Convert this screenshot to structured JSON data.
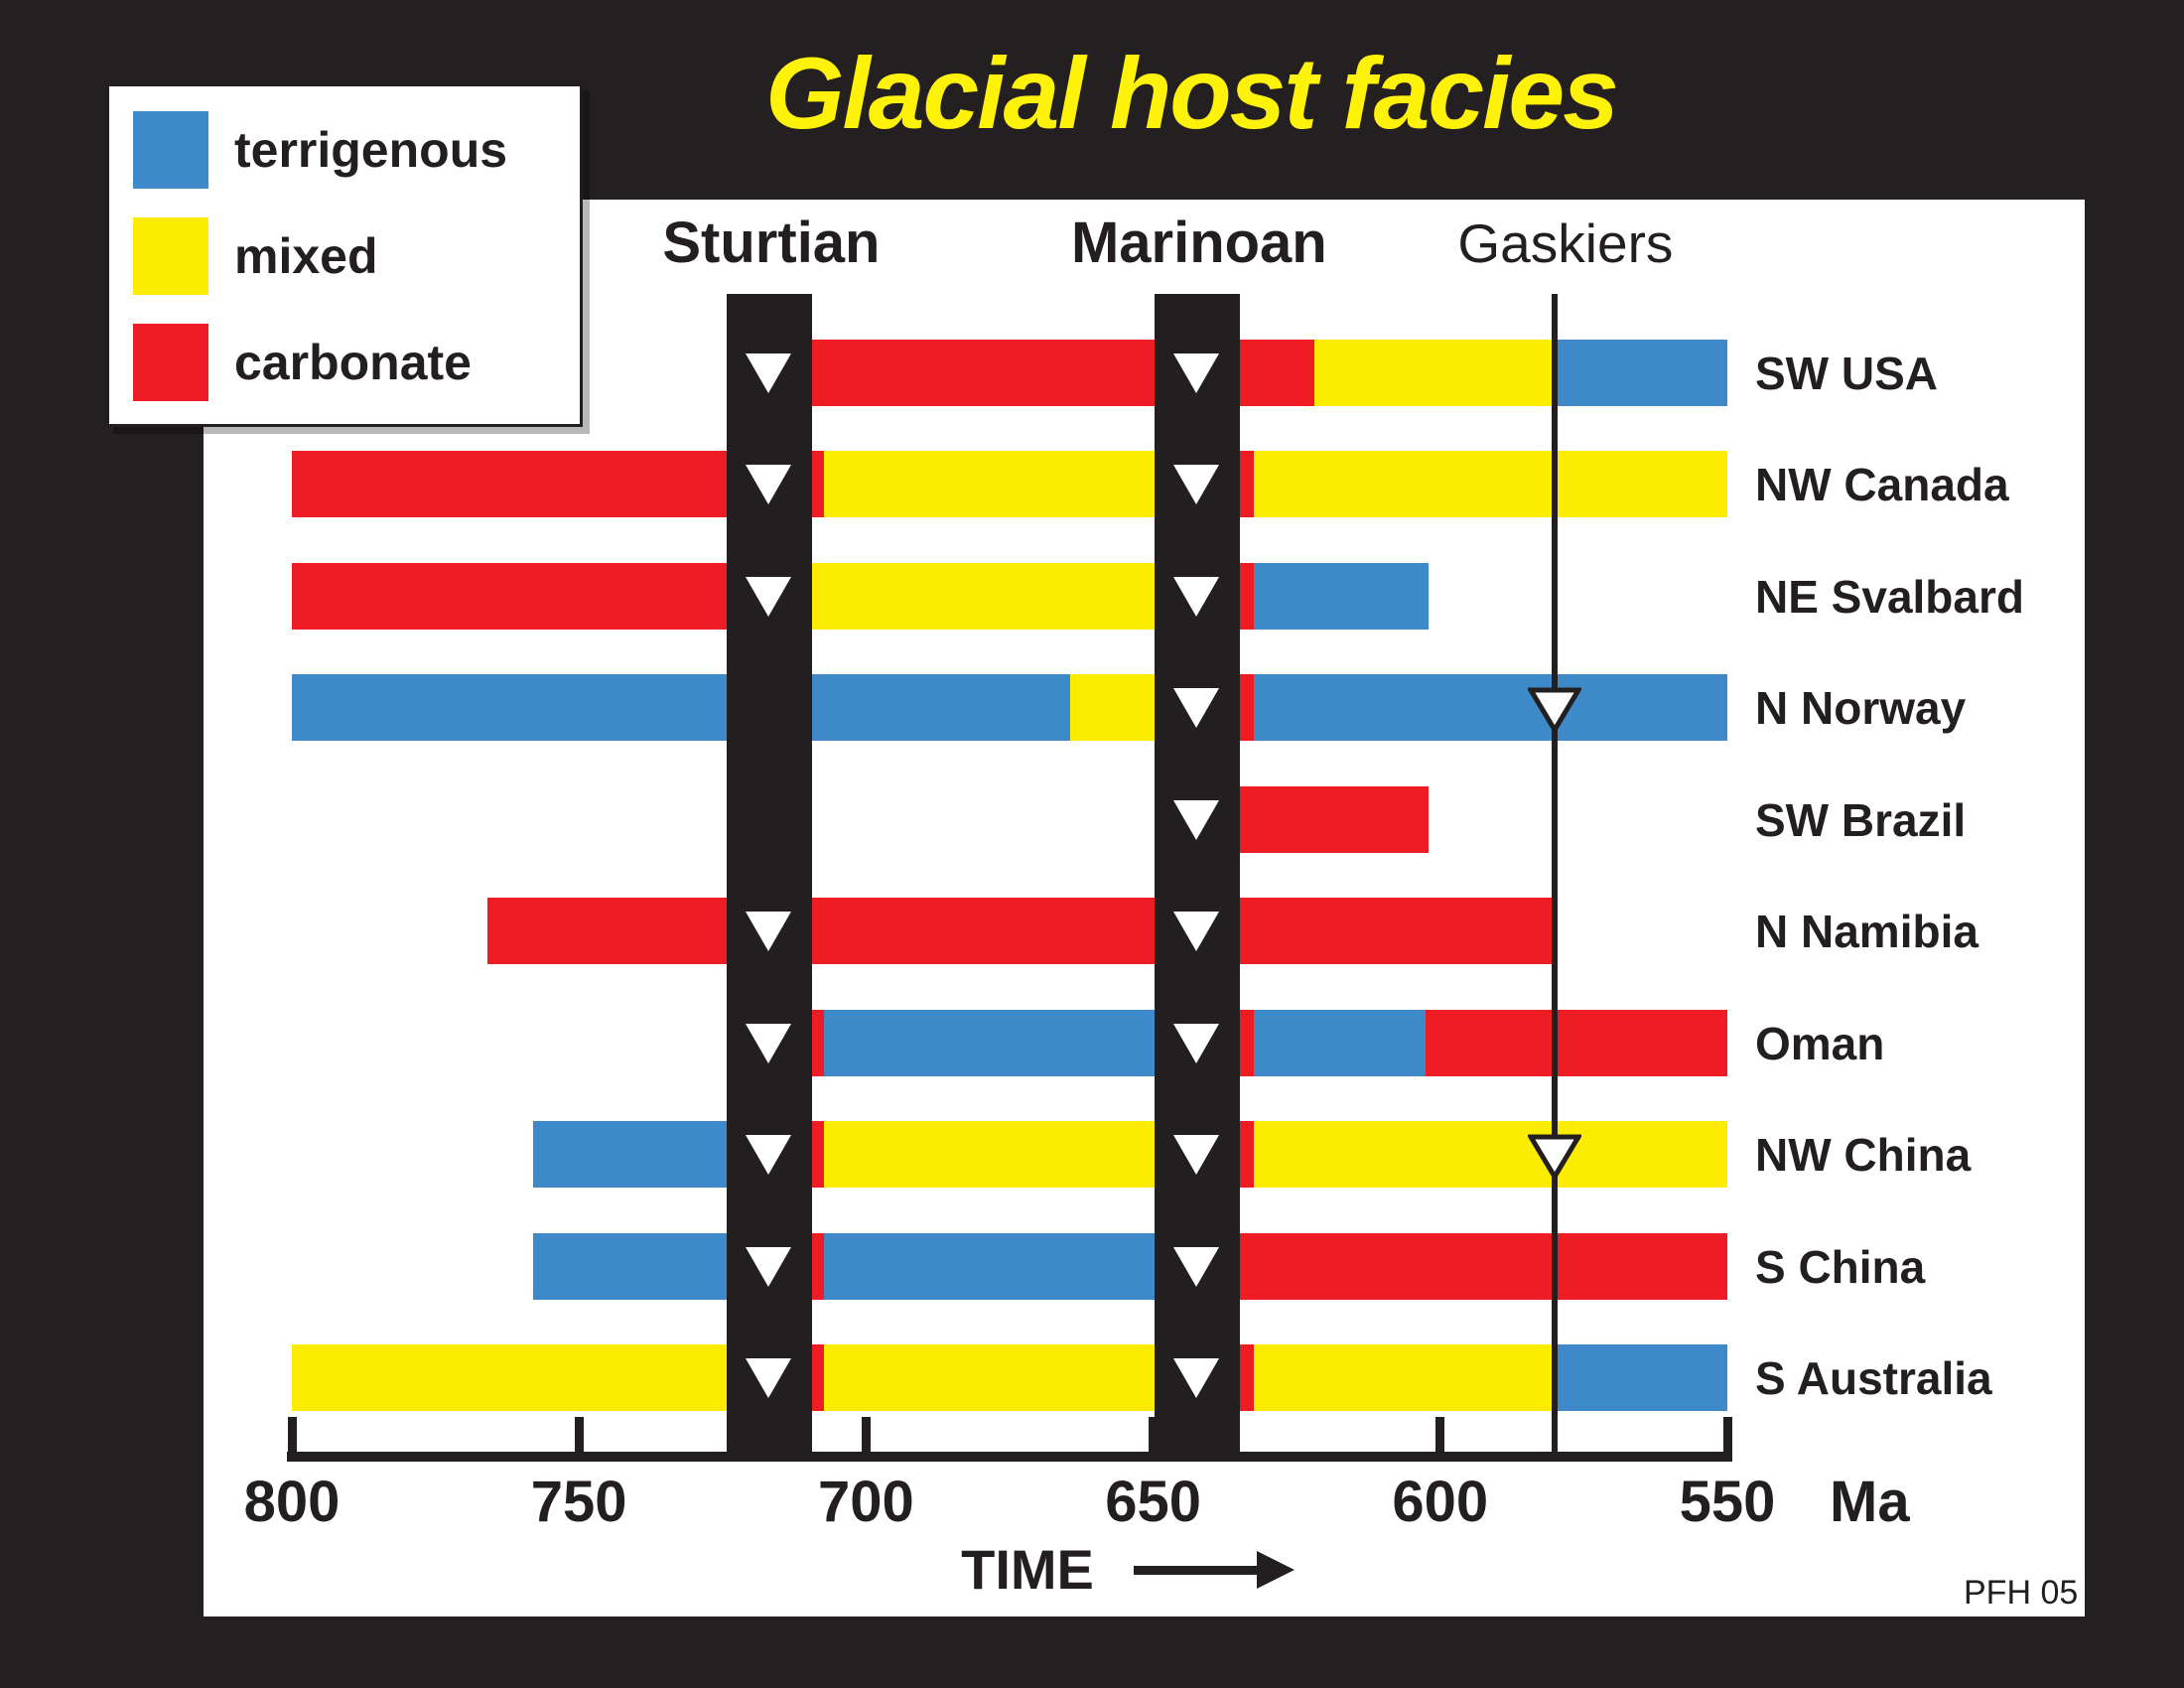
{
  "title": {
    "text": "Glacial host facies",
    "color": "#FFF20A"
  },
  "credit": "PFH 05",
  "legend": {
    "items": [
      {
        "label": "terrigenous",
        "facies": "terrigenous",
        "color": "#3E89C8"
      },
      {
        "label": "mixed",
        "facies": "mixed",
        "color": "#FCEC00"
      },
      {
        "label": "carbonate",
        "facies": "carbonate",
        "color": "#EE1C25"
      }
    ]
  },
  "chart_data": {
    "type": "bar",
    "variant": "horizontal-timeline",
    "title": "Glacial host facies",
    "time_axis": {
      "label": "TIME",
      "unit": "Ma",
      "ticks": [
        800,
        750,
        700,
        650,
        600,
        550
      ],
      "min": 800,
      "max": 550,
      "direction": "older-left"
    },
    "facies_colors": {
      "terrigenous": "#3E89C8",
      "mixed": "#FCEC00",
      "carbonate": "#EE1C25"
    },
    "glaciations": [
      {
        "id": "sturtian",
        "name": "Sturtian",
        "style": "band",
        "from_ma": 724.3,
        "to_ma": 709.4,
        "label_weight": "bold"
      },
      {
        "id": "marinoan",
        "name": "Marinoan",
        "style": "band",
        "from_ma": 649.8,
        "to_ma": 634.9,
        "label_weight": "bold"
      },
      {
        "id": "gaskiers",
        "name": "Gaskiers",
        "style": "line",
        "at_ma": 580.1,
        "label_weight": "normal"
      }
    ],
    "rows": [
      {
        "label": "SW USA",
        "markers": [
          "sturtian",
          "marinoan"
        ],
        "segments": [
          {
            "facies": "carbonate",
            "from_ma": 709.4,
            "to_ma": 622.0
          },
          {
            "facies": "mixed",
            "from_ma": 622.0,
            "to_ma": 580.1
          },
          {
            "facies": "terrigenous",
            "from_ma": 580.1,
            "to_ma": 550.0
          }
        ]
      },
      {
        "label": "NW Canada",
        "markers": [
          "sturtian",
          "marinoan"
        ],
        "segments": [
          {
            "facies": "carbonate",
            "from_ma": 800.0,
            "to_ma": 707.3
          },
          {
            "facies": "mixed",
            "from_ma": 707.3,
            "to_ma": 634.9
          },
          {
            "facies": "carbonate",
            "from_ma": 634.9,
            "to_ma": 632.5
          },
          {
            "facies": "mixed",
            "from_ma": 632.5,
            "to_ma": 550.0
          }
        ]
      },
      {
        "label": "NE Svalbard",
        "markers": [
          "sturtian",
          "marinoan"
        ],
        "segments": [
          {
            "facies": "carbonate",
            "from_ma": 800.0,
            "to_ma": 709.4
          },
          {
            "facies": "mixed",
            "from_ma": 709.4,
            "to_ma": 634.9
          },
          {
            "facies": "carbonate",
            "from_ma": 634.9,
            "to_ma": 632.5
          },
          {
            "facies": "terrigenous",
            "from_ma": 632.5,
            "to_ma": 602.0
          }
        ]
      },
      {
        "label": "N Norway",
        "markers": [
          "marinoan",
          "gaskiers"
        ],
        "segments": [
          {
            "facies": "terrigenous",
            "from_ma": 800.0,
            "to_ma": 664.5
          },
          {
            "facies": "mixed",
            "from_ma": 664.5,
            "to_ma": 649.8
          },
          {
            "facies": "carbonate",
            "from_ma": 634.9,
            "to_ma": 632.5
          },
          {
            "facies": "terrigenous",
            "from_ma": 632.5,
            "to_ma": 550.0
          }
        ]
      },
      {
        "label": "SW Brazil",
        "markers": [
          "marinoan"
        ],
        "segments": [
          {
            "facies": "carbonate",
            "from_ma": 634.9,
            "to_ma": 602.0
          }
        ]
      },
      {
        "label": "N Namibia",
        "markers": [
          "sturtian",
          "marinoan"
        ],
        "segments": [
          {
            "facies": "carbonate",
            "from_ma": 766.0,
            "to_ma": 580.1
          }
        ]
      },
      {
        "label": "Oman",
        "markers": [
          "sturtian",
          "marinoan"
        ],
        "segments": [
          {
            "facies": "carbonate",
            "from_ma": 709.4,
            "to_ma": 707.3
          },
          {
            "facies": "terrigenous",
            "from_ma": 707.3,
            "to_ma": 649.8
          },
          {
            "facies": "carbonate",
            "from_ma": 634.9,
            "to_ma": 632.5
          },
          {
            "facies": "terrigenous",
            "from_ma": 632.5,
            "to_ma": 602.5
          },
          {
            "facies": "carbonate",
            "from_ma": 602.5,
            "to_ma": 550.0
          }
        ]
      },
      {
        "label": "NW China",
        "markers": [
          "sturtian",
          "marinoan",
          "gaskiers"
        ],
        "segments": [
          {
            "facies": "terrigenous",
            "from_ma": 758.0,
            "to_ma": 724.3
          },
          {
            "facies": "carbonate",
            "from_ma": 709.4,
            "to_ma": 707.3
          },
          {
            "facies": "mixed",
            "from_ma": 707.3,
            "to_ma": 649.8
          },
          {
            "facies": "carbonate",
            "from_ma": 634.9,
            "to_ma": 632.5
          },
          {
            "facies": "mixed",
            "from_ma": 632.5,
            "to_ma": 550.0
          }
        ]
      },
      {
        "label": "S China",
        "markers": [
          "sturtian",
          "marinoan"
        ],
        "segments": [
          {
            "facies": "terrigenous",
            "from_ma": 758.0,
            "to_ma": 724.3
          },
          {
            "facies": "carbonate",
            "from_ma": 709.4,
            "to_ma": 707.3
          },
          {
            "facies": "terrigenous",
            "from_ma": 707.3,
            "to_ma": 649.8
          },
          {
            "facies": "carbonate",
            "from_ma": 634.9,
            "to_ma": 550.0
          }
        ]
      },
      {
        "label": "S Australia",
        "markers": [
          "sturtian",
          "marinoan"
        ],
        "segments": [
          {
            "facies": "mixed",
            "from_ma": 800.0,
            "to_ma": 724.3
          },
          {
            "facies": "carbonate",
            "from_ma": 709.4,
            "to_ma": 707.3
          },
          {
            "facies": "mixed",
            "from_ma": 707.3,
            "to_ma": 649.8
          },
          {
            "facies": "carbonate",
            "from_ma": 634.9,
            "to_ma": 632.5
          },
          {
            "facies": "mixed",
            "from_ma": 632.5,
            "to_ma": 580.1
          },
          {
            "facies": "terrigenous",
            "from_ma": 580.1,
            "to_ma": 550.0
          }
        ]
      }
    ]
  }
}
